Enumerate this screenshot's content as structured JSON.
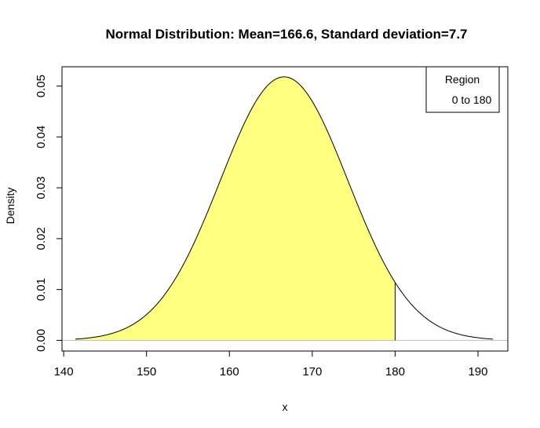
{
  "chart_data": {
    "type": "area",
    "title": "Normal Distribution:  Mean=166.6, Standard deviation=7.7",
    "xlabel": "x",
    "ylabel": "Density",
    "distribution": {
      "mean": 166.6,
      "sd": 7.7
    },
    "curve_x_range": [
      141.4,
      191.8
    ],
    "shaded_region": {
      "from": 141.4,
      "to": 180,
      "color": "#FFFF80"
    },
    "xlim": [
      139.8,
      193.6
    ],
    "ylim": [
      -0.0021,
      0.0538
    ],
    "x_ticks": [
      140,
      150,
      160,
      170,
      180,
      190
    ],
    "x_tick_labels": [
      "140",
      "150",
      "160",
      "170",
      "180",
      "190"
    ],
    "y_ticks": [
      0,
      0.01,
      0.02,
      0.03,
      0.04,
      0.05
    ],
    "y_tick_labels": [
      "0.00",
      "0.01",
      "0.02",
      "0.03",
      "0.04",
      "0.05"
    ],
    "baseline_y": 0,
    "grid": false,
    "legend": {
      "position": "top-right",
      "title": "Region",
      "entries": [
        "0 to 180"
      ]
    }
  }
}
